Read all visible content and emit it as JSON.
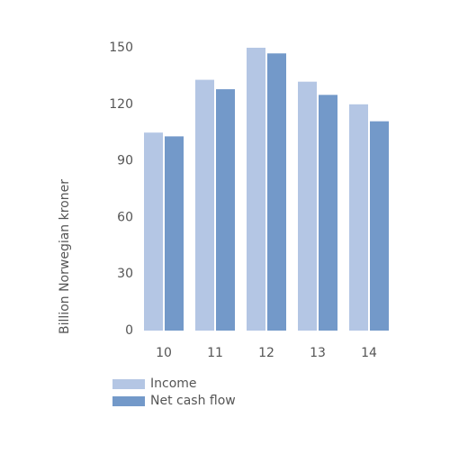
{
  "chart_data": {
    "type": "bar",
    "y_label": "Billion Norwegian kroner",
    "categories": [
      "10",
      "11",
      "12",
      "13",
      "14"
    ],
    "series": [
      {
        "name": "Income",
        "color": "#b4c6e4",
        "values": [
          105,
          133,
          150,
          132,
          120
        ]
      },
      {
        "name": "Net cash flow",
        "color": "#7399c9",
        "values": [
          103,
          128,
          147,
          125,
          111
        ]
      }
    ],
    "ylim": [
      0,
      150
    ],
    "yticks": [
      0,
      30,
      60,
      90,
      120,
      150
    ],
    "grid": false
  }
}
